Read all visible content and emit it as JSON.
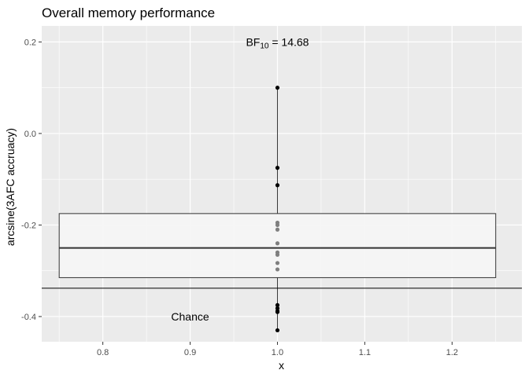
{
  "chart_data": {
    "type": "boxplot",
    "title": "Overall memory performance",
    "xlabel": "x",
    "ylabel": "arcsine(3AFC accruacy)",
    "xlim": [
      0.73,
      1.28
    ],
    "ylim": [
      -0.455,
      0.235
    ],
    "x_ticks": [
      0.8,
      0.9,
      1.0,
      1.1,
      1.2
    ],
    "x_tick_labels": [
      "0.8",
      "0.9",
      "1.0",
      "1.1",
      "1.2"
    ],
    "y_ticks": [
      -0.4,
      -0.2,
      0.0,
      0.2
    ],
    "y_tick_labels": [
      "-0.4",
      "-0.2",
      "0.0",
      "0.2"
    ],
    "x_minor_ticks": [
      0.75,
      0.85,
      0.95,
      1.05,
      1.15,
      1.25
    ],
    "y_minor_ticks": [
      -0.3,
      -0.1,
      0.1
    ],
    "grid": true,
    "panel_color": "#ebebeb",
    "box": {
      "x": 1.0,
      "x_from": 0.75,
      "x_to": 1.25,
      "q1": -0.315,
      "median": -0.25,
      "q3": -0.175,
      "whisker_low": -0.43,
      "whisker_high": 0.1,
      "fill": "#f5f5f5"
    },
    "outer_points": [
      0.1,
      -0.075,
      -0.113,
      -0.375,
      -0.382,
      -0.388,
      -0.39,
      -0.43
    ],
    "inner_points": [
      -0.195,
      -0.2,
      -0.21,
      -0.24,
      -0.26,
      -0.265,
      -0.283,
      -0.297
    ],
    "outer_point_color": "#000000",
    "inner_point_color": "#7f7f7f",
    "chance_level": -0.338,
    "annotations": [
      {
        "id": "bf",
        "main": "BF",
        "sub": "10",
        "rest": " = 14.68",
        "x": 1.0,
        "y": 0.2
      },
      {
        "id": "chance",
        "text": "Chance",
        "x": 0.9,
        "y": -0.4
      }
    ]
  }
}
